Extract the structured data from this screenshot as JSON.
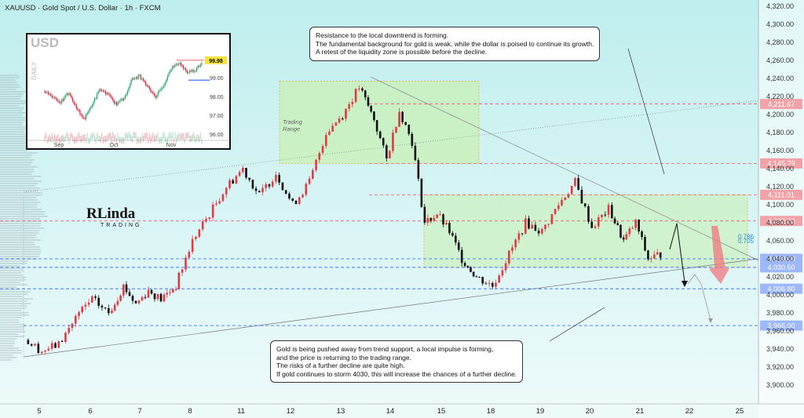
{
  "header": {
    "title": "XAUUSD · Gold Spot / U.S. Dollar · 1h · FXCM"
  },
  "colors": {
    "up": "#e03a45",
    "down": "#111111",
    "resistance": "#f15d6b",
    "support": "#2962ff",
    "zone": "#c8f0b6",
    "zone_border": "#d9b84a"
  },
  "logo": {
    "main": "RLinda",
    "sub": "TRADING"
  },
  "notes": {
    "top": "Resistance to the local downtrend is forming.\nThe fundamental background for gold is weak, while the dollar is poised to continue its growth.\nA retest of the liquidity zone is possible before the decline.",
    "bottom": "Gold is being pushed away from trend support, a local impulse is forming,\nand the price is returning to the trading range.\nThe risks of a further decline are quite high.\nIf gold continues to storm 4030, this will increase the chances of a further decline."
  },
  "range_label": "Trading\nRange",
  "fib": {
    "f1": "0.786",
    "f2": "0.705"
  },
  "inset": {
    "title": "USD",
    "daily_label": "DAILY",
    "price_tag": "99.98",
    "y_ticks": [
      "99.00",
      "98.00",
      "97.00",
      "96.00"
    ],
    "x_ticks": [
      "Sep",
      "Oct",
      "Nov"
    ]
  },
  "chart_data": {
    "type": "candlestick",
    "title": "XAUUSD · Gold Spot / U.S. Dollar · 1h · FXCM",
    "x_ticks": [
      "5",
      "6",
      "7",
      "8",
      "11",
      "12",
      "13",
      "14",
      "15",
      "18",
      "19",
      "20",
      "21",
      "22",
      "25"
    ],
    "y_ticks": [
      "4,320.00",
      "4,300.00",
      "4,280.00",
      "4,260.00",
      "4,240.00",
      "4,220.00",
      "4,200.00",
      "4,180.00",
      "4,160.00",
      "4,140.00",
      "4,120.00",
      "4,100.00",
      "4,080.00",
      "4,060.00",
      "4,040.00",
      "4,020.00",
      "4,000.00",
      "3,980.00",
      "3,960.00",
      "3,940.00",
      "3,920.00",
      "3,900.00"
    ],
    "ylim": [
      3885,
      4325
    ],
    "levels": [
      {
        "value": 4211.67,
        "label": "4,211.67",
        "kind": "resistance"
      },
      {
        "value": 4145.79,
        "label": "4,145.79",
        "kind": "resistance"
      },
      {
        "value": 4111.01,
        "label": "4,111.01",
        "kind": "resistance"
      },
      {
        "value": 4082.0,
        "label": "4,082.00",
        "kind": "resistance"
      },
      {
        "value": 4040.0,
        "label": "4,040.00",
        "kind": "support"
      },
      {
        "value": 4030.5,
        "label": "4,030.50",
        "kind": "support"
      },
      {
        "value": 4006.8,
        "label": "4,006.80",
        "kind": "support"
      },
      {
        "value": 3966.0,
        "label": "3,966.00",
        "kind": "support"
      }
    ],
    "price_path": [
      [
        "5",
        3950
      ],
      [
        "5",
        3938
      ],
      [
        "5",
        3945
      ],
      [
        "6",
        3975
      ],
      [
        "6",
        3995
      ],
      [
        "6",
        3980
      ],
      [
        "7",
        4010
      ],
      [
        "7",
        3990
      ],
      [
        "7",
        4005
      ],
      [
        "7",
        3995
      ],
      [
        "8",
        4010
      ],
      [
        "8",
        4060
      ],
      [
        "8",
        4090
      ],
      [
        "11",
        4120
      ],
      [
        "11",
        4140
      ],
      [
        "11",
        4110
      ],
      [
        "12",
        4135
      ],
      [
        "12",
        4100
      ],
      [
        "12",
        4125
      ],
      [
        "13",
        4180
      ],
      [
        "13",
        4200
      ],
      [
        "13",
        4230
      ],
      [
        "14",
        4195
      ],
      [
        "14",
        4150
      ],
      [
        "14",
        4205
      ],
      [
        "14",
        4170
      ],
      [
        "15",
        4080
      ],
      [
        "15",
        4090
      ],
      [
        "15",
        4070
      ],
      [
        "15",
        4040
      ],
      [
        "18",
        4020
      ],
      [
        "18",
        4010
      ],
      [
        "18",
        4045
      ],
      [
        "19",
        4080
      ],
      [
        "19",
        4070
      ],
      [
        "19",
        4100
      ],
      [
        "20",
        4125
      ],
      [
        "20",
        4075
      ],
      [
        "20",
        4095
      ],
      [
        "21",
        4060
      ],
      [
        "21",
        4080
      ],
      [
        "21",
        4040
      ],
      [
        "21",
        4045
      ]
    ]
  }
}
